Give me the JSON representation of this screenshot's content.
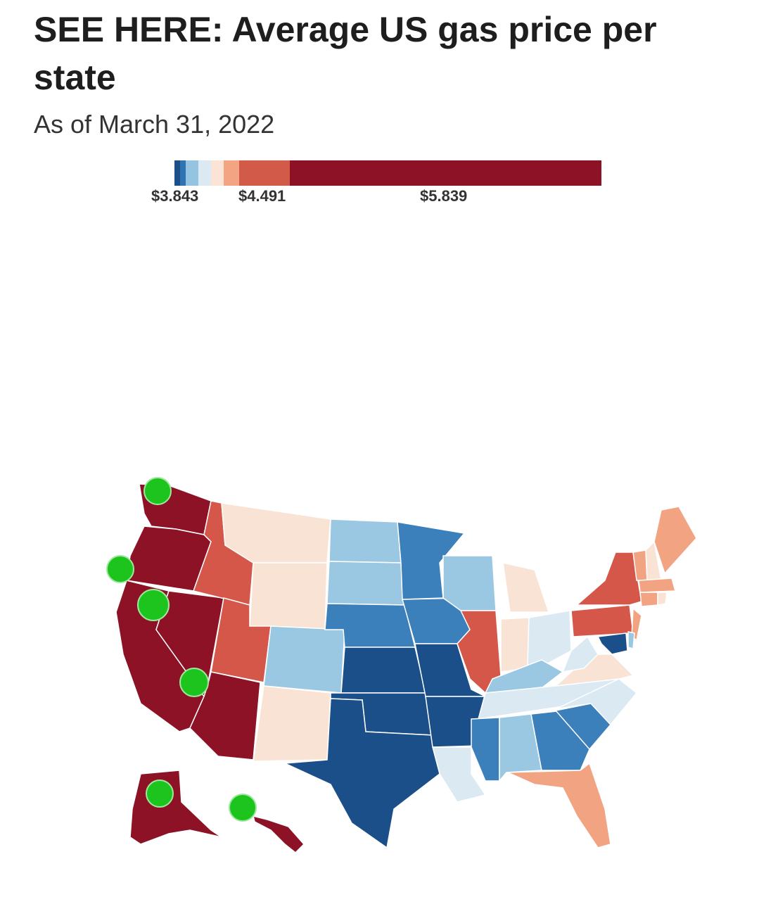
{
  "header": {
    "title": "SEE HERE: Average US gas price per state",
    "subtitle": "As of March 31, 2022"
  },
  "legend": {
    "labels": [
      "$3.843",
      "$4.491",
      "$5.839"
    ],
    "colors": [
      "#1a4f8a",
      "#2f73b3",
      "#94c4e0",
      "#dbe9f3",
      "#fbe3d6",
      "#f3a583",
      "#d25a48",
      "#8e1226"
    ]
  },
  "colors": {
    "darkest_blue": "#1a4f8a",
    "mid_blue": "#3b7fbb",
    "light_blue": "#9ac7e1",
    "pale_blue": "#dbe9f3",
    "pale_peach": "#f9e3d5",
    "salmon": "#f2a381",
    "red": "#d4574a",
    "dark_red": "#8e1226",
    "marker_green": "#1ec41e"
  },
  "map": {
    "marker_icon": "green-dot-marker"
  }
}
